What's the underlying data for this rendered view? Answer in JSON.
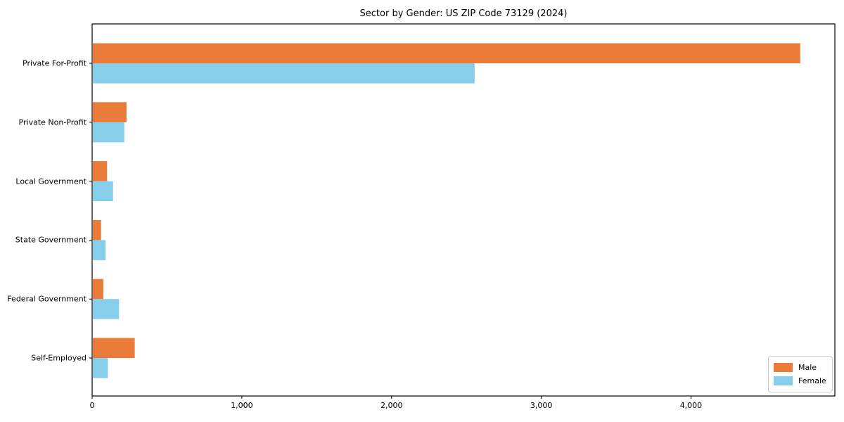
{
  "chart_data": {
    "type": "bar",
    "orientation": "horizontal",
    "title": "Sector by Gender: US ZIP Code 73129 (2024)",
    "categories": [
      "Private For-Profit",
      "Private Non-Profit",
      "Local Government",
      "State Government",
      "Federal Government",
      "Self-Employed"
    ],
    "series": [
      {
        "name": "Male",
        "color": "#ea7b38",
        "values": [
          4725,
          225,
          95,
          55,
          70,
          280
        ]
      },
      {
        "name": "Female",
        "color": "#87ceeb",
        "values": [
          2550,
          210,
          135,
          85,
          175,
          100
        ]
      }
    ],
    "x_ticks": [
      0,
      1000,
      2000,
      3000,
      4000
    ],
    "x_tick_labels": [
      "0",
      "1,000",
      "2,000",
      "3,000",
      "4,000"
    ],
    "xlim": [
      0,
      4961
    ],
    "xlabel": "",
    "ylabel": "",
    "grid": false,
    "legend_position": "lower right",
    "frame_color": "#000000",
    "background_color": "#ffffff"
  }
}
